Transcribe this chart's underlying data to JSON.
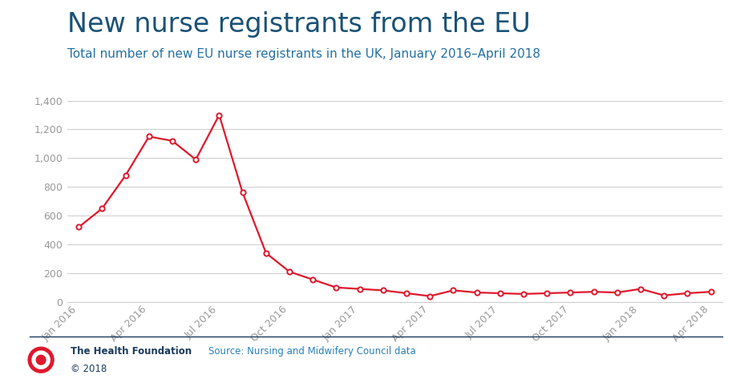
{
  "title": "New nurse registrants from the EU",
  "subtitle": "Total number of new EU nurse registrants in the UK, January 2016–April 2018",
  "values": [
    520,
    650,
    880,
    1150,
    1120,
    990,
    1300,
    760,
    340,
    210,
    155,
    100,
    90,
    80,
    60,
    40,
    80,
    65,
    60,
    55,
    60,
    65,
    70,
    65,
    90,
    45,
    60,
    70
  ],
  "tick_labels": [
    "Jan 2016",
    "Apr 2016",
    "Jul 2016",
    "Oct 2016",
    "Jan 2017",
    "Apr 2017",
    "Jul 2017",
    "Oct 2017",
    "Jan 2018",
    "Apr 2018"
  ],
  "tick_positions": [
    0,
    3,
    6,
    9,
    12,
    15,
    18,
    21,
    24,
    27
  ],
  "ylim": [
    0,
    1400
  ],
  "yticks": [
    0,
    200,
    400,
    600,
    800,
    1000,
    1200,
    1400
  ],
  "line_color": "#e0182d",
  "marker_color": "#e0182d",
  "title_color": "#1a5276",
  "subtitle_color": "#2471a3",
  "grid_color": "#cccccc",
  "footer_org": "The Health Foundation",
  "footer_year": "© 2018",
  "footer_source": "Source: Nursing and Midwifery Council data",
  "background_color": "#ffffff",
  "title_fontsize": 24,
  "subtitle_fontsize": 11,
  "tick_fontsize": 9,
  "footer_fontsize": 8.5,
  "footer_line_color": "#1a3a5c",
  "logo_color": "#e0182d"
}
